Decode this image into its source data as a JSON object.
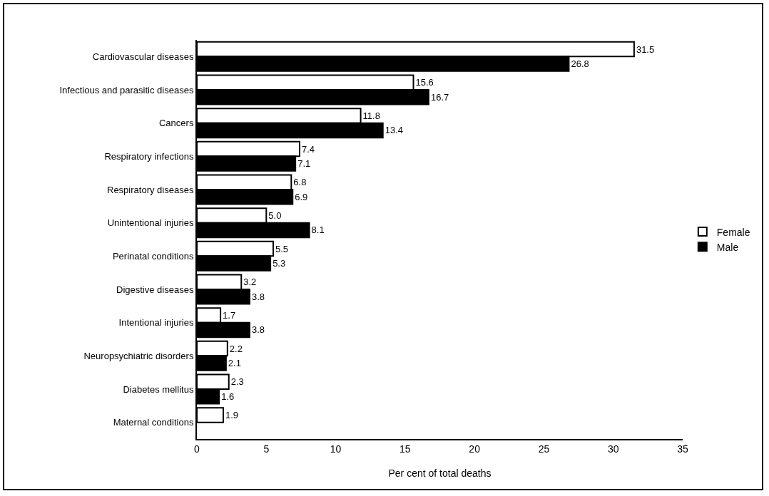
{
  "chart_data": {
    "type": "bar",
    "orientation": "horizontal",
    "xlabel": "Per cent of total deaths",
    "categories": [
      "Cardiovascular diseases",
      "Infectious and parasitic diseases",
      "Cancers",
      "Respiratory infections",
      "Respiratory diseases",
      "Unintentional injuries",
      "Perinatal conditions",
      "Digestive diseases",
      "Intentional injuries",
      "Neuropsychiatric disorders",
      "Diabetes mellitus",
      "Maternal conditions"
    ],
    "series": [
      {
        "name": "Female",
        "color": "#ffffff",
        "values": [
          31.5,
          15.6,
          11.8,
          7.4,
          6.8,
          5.0,
          5.5,
          3.2,
          1.7,
          2.2,
          2.3,
          1.9
        ],
        "value_labels": [
          "31.5",
          "15.6",
          "11.8",
          "7.4",
          "6.8",
          "5.0",
          "5.5",
          "3.2",
          "1.7",
          "2.2",
          "2.3",
          "1.9"
        ]
      },
      {
        "name": "Male",
        "color": "#000000",
        "values": [
          26.8,
          16.7,
          13.4,
          7.1,
          6.9,
          8.1,
          5.3,
          3.8,
          3.8,
          2.1,
          1.6,
          null
        ],
        "value_labels": [
          "26.8",
          "16.7",
          "13.4",
          "7.1",
          "6.9",
          "8.1",
          "5.3",
          "3.8",
          "3.8",
          "2.1",
          "1.6",
          null
        ]
      }
    ],
    "xlim": [
      0,
      35
    ],
    "xticks": [
      0,
      5,
      10,
      15,
      20,
      25,
      30,
      35
    ],
    "grid": false,
    "legend": "right"
  }
}
